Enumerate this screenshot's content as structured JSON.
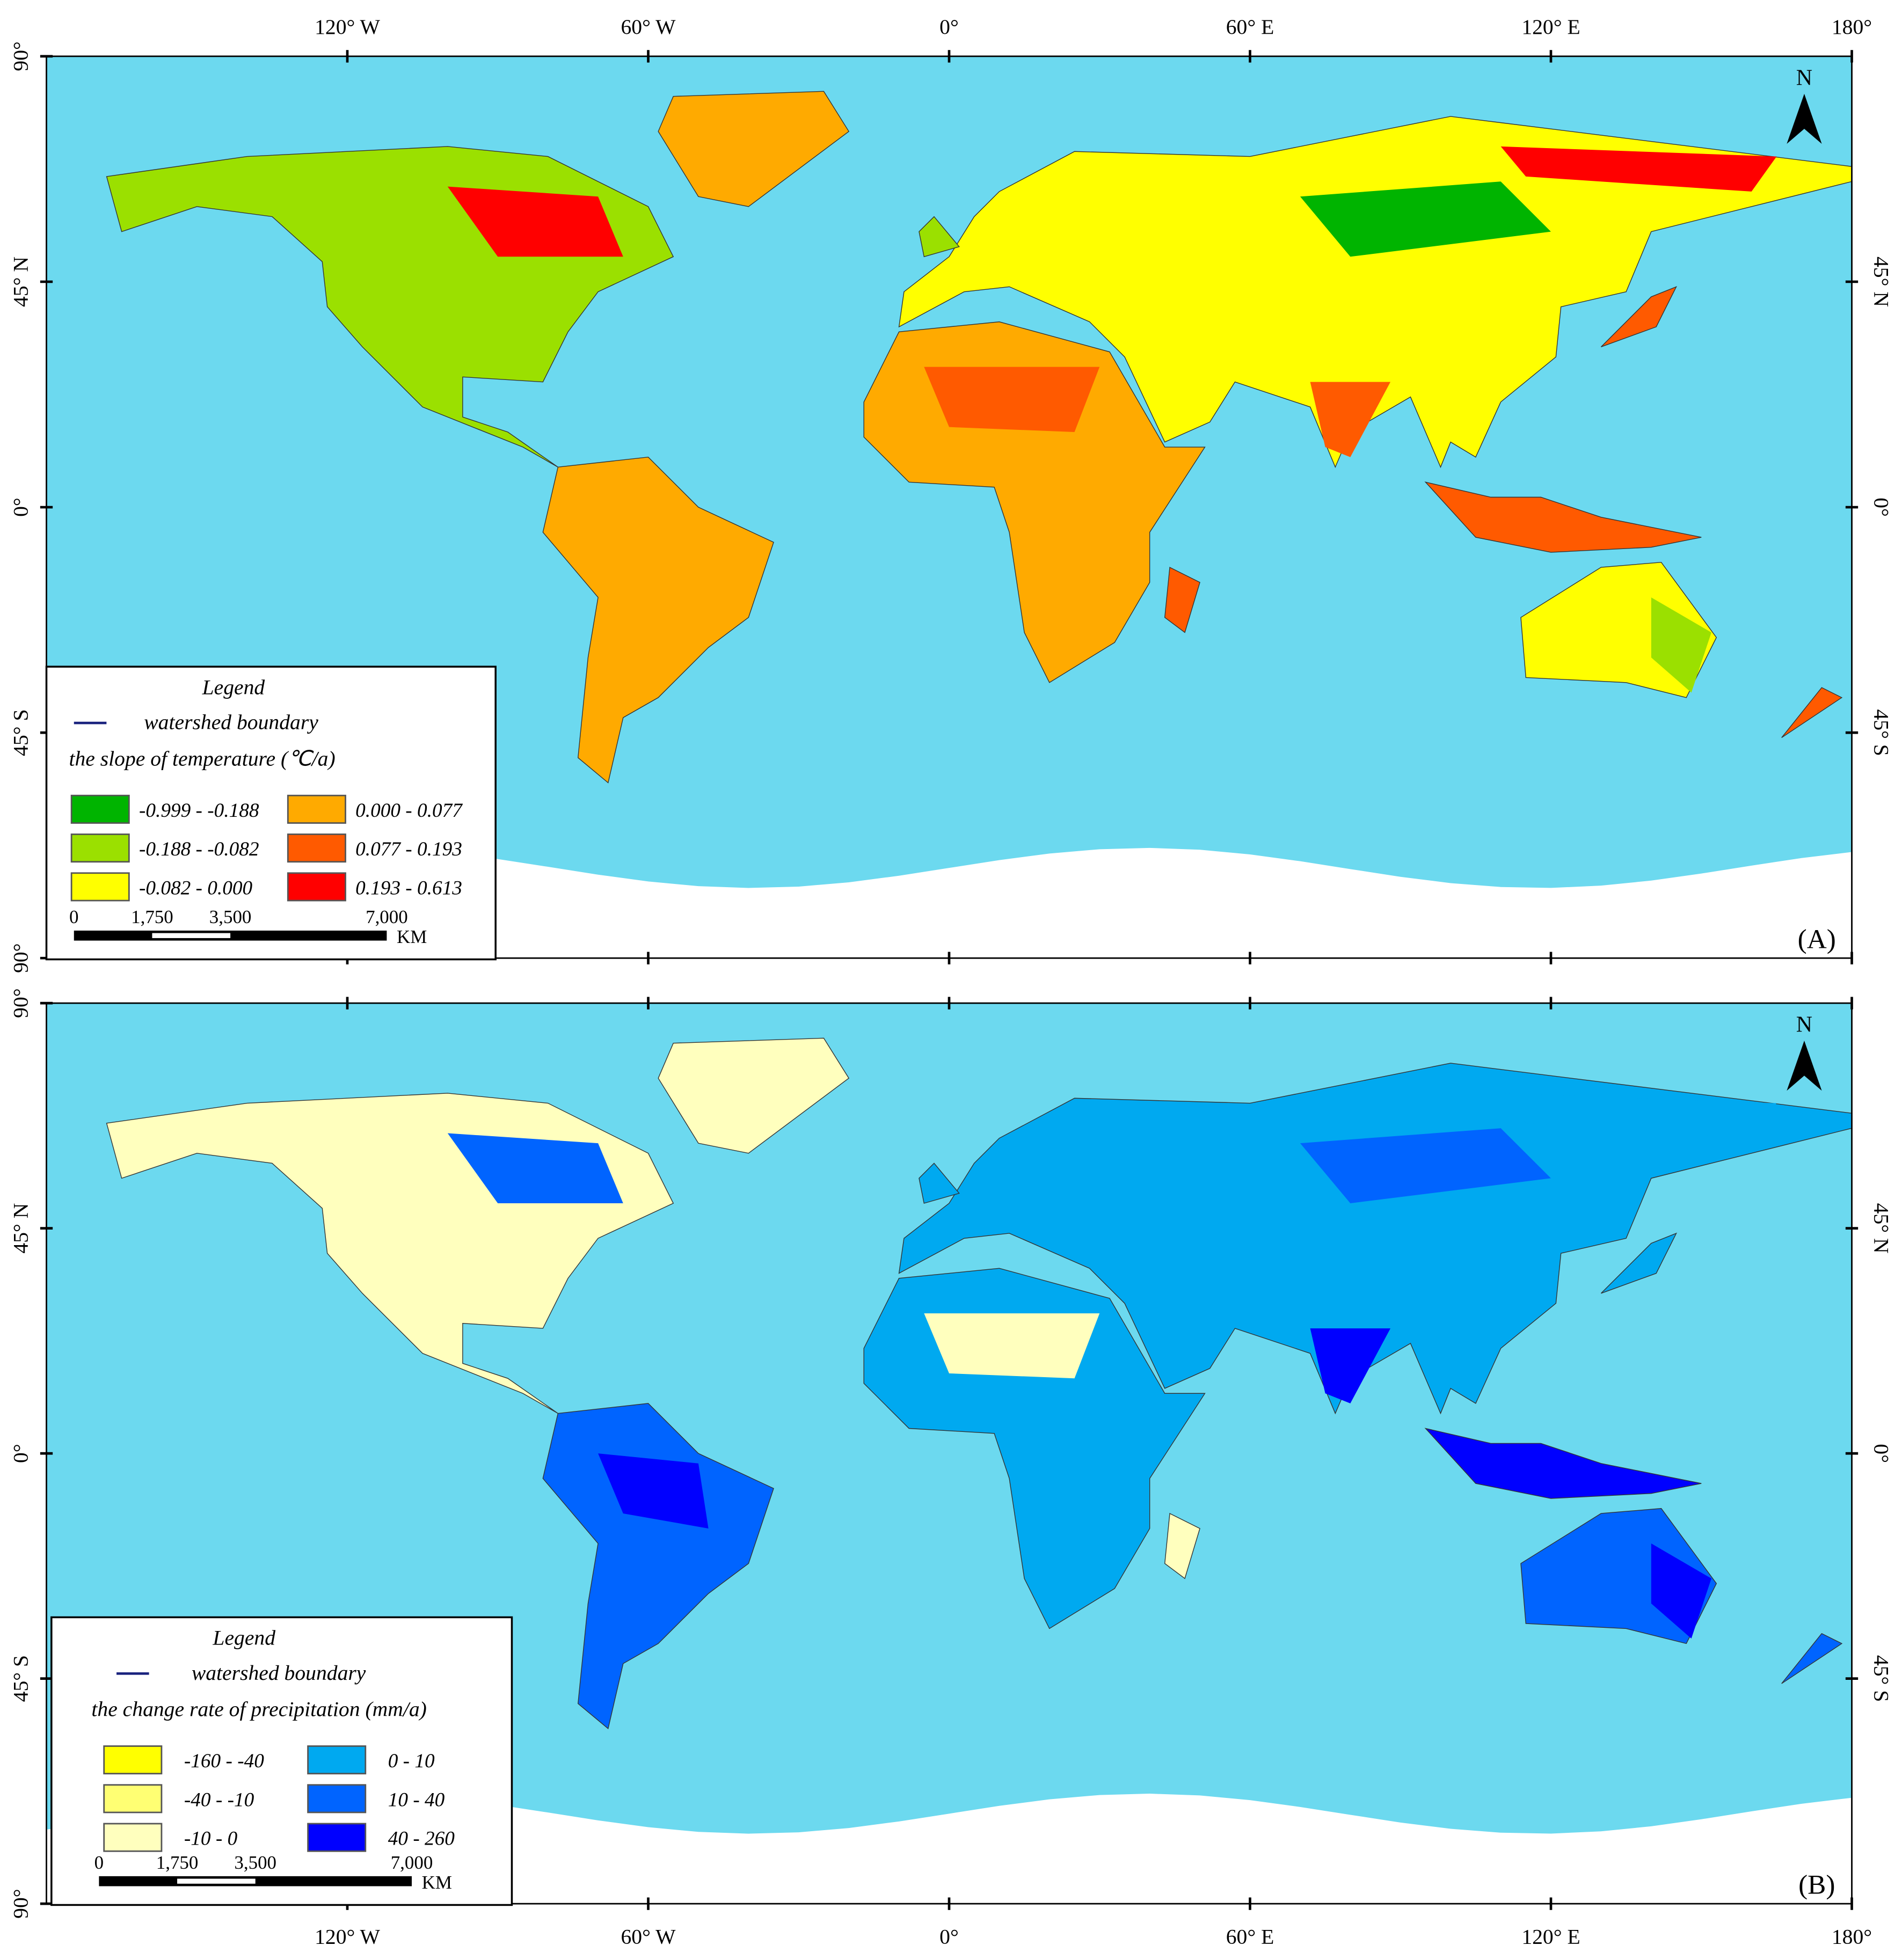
{
  "panels": [
    {
      "label": "(A)",
      "top_axis_labels": [
        "120° W",
        "60° W",
        "0°",
        "60° E",
        "120° E",
        "180°"
      ],
      "left_axis_labels": [
        "90°",
        "45° N",
        "0°",
        "45° S",
        "90°"
      ],
      "right_axis_labels": [
        "45° N",
        "0°",
        "45° S"
      ],
      "north": "N",
      "legend": {
        "title": "Legend",
        "boundary": "watershed boundary",
        "variable": "the slope of temperature (℃/a)",
        "classes": [
          {
            "label": "-0.999 - -0.188",
            "color": "#00b400"
          },
          {
            "label": "-0.188 - -0.082",
            "color": "#9be000"
          },
          {
            "label": "-0.082 - 0.000",
            "color": "#ffff00"
          },
          {
            "label": "0.000 - 0.077",
            "color": "#ffaa00"
          },
          {
            "label": "0.077 - 0.193",
            "color": "#ff5a00"
          },
          {
            "label": "0.193 - 0.613",
            "color": "#ff0000"
          }
        ]
      },
      "scale_bar": {
        "labels": [
          "0",
          "1,750",
          "3,500",
          "7,000"
        ],
        "unit": "KM"
      }
    },
    {
      "label": "(B)",
      "bottom_axis_labels": [
        "120° W",
        "60° W",
        "0°",
        "60° E",
        "120° E",
        "180°"
      ],
      "left_axis_labels": [
        "90°",
        "45° N",
        "0°",
        "45° S",
        "90°"
      ],
      "right_axis_labels": [
        "45° N",
        "0°",
        "45° S"
      ],
      "north": "N",
      "legend": {
        "title": "Legend",
        "boundary": "watershed boundary",
        "variable": "the change rate of precipitation (mm/a)",
        "classes": [
          {
            "label": "-160 - -40",
            "color": "#ffff00"
          },
          {
            "label": "-40 - -10",
            "color": "#ffff73"
          },
          {
            "label": "-10 - 0",
            "color": "#ffffbe"
          },
          {
            "label": "0 - 10",
            "color": "#00a9f0"
          },
          {
            "label": "10 - 40",
            "color": "#0064ff"
          },
          {
            "label": "40 - 260",
            "color": "#0000ff"
          }
        ]
      },
      "scale_bar": {
        "labels": [
          "0",
          "1,750",
          "3,500",
          "7,000"
        ],
        "unit": "KM"
      }
    }
  ]
}
